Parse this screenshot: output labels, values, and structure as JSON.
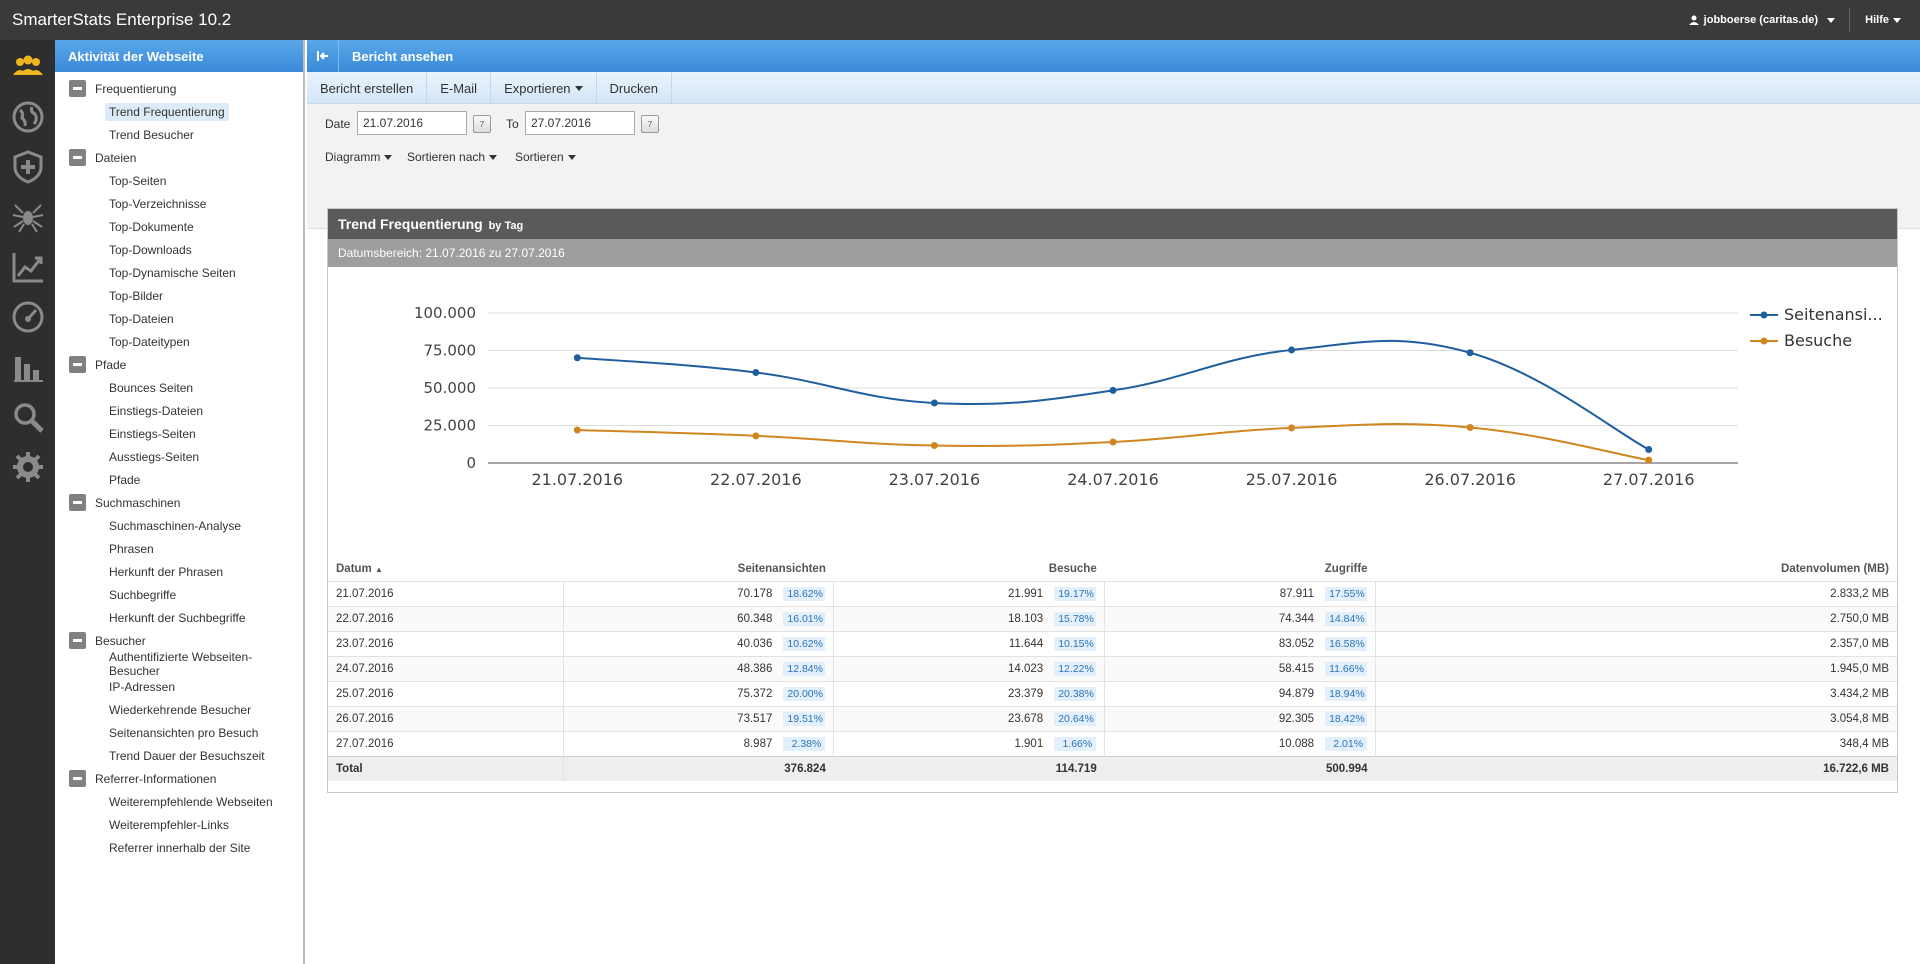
{
  "app": {
    "title": "SmarterStats Enterprise 10.2",
    "user_menu": "jobboerse (caritas.de)",
    "help_menu": "Hilfe"
  },
  "rail_icons": [
    "users-icon",
    "globe-icon",
    "shield-plus-icon",
    "spider-icon",
    "trend-chart-icon",
    "gauge-icon",
    "bar-chart-icon",
    "search-icon",
    "gear-icon"
  ],
  "sidebar": {
    "title": "Aktivität der Webseite",
    "groups": [
      {
        "label": "Frequentierung",
        "items": [
          "Trend Frequentierung",
          "Trend Besucher"
        ]
      },
      {
        "label": "Dateien",
        "items": [
          "Top-Seiten",
          "Top-Verzeichnisse",
          "Top-Dokumente",
          "Top-Downloads",
          "Top-Dynamische Seiten",
          "Top-Bilder",
          "Top-Dateien",
          "Top-Dateitypen"
        ]
      },
      {
        "label": "Pfade",
        "items": [
          "Bounces Seiten",
          "Einstiegs-Dateien",
          "Einstiegs-Seiten",
          "Ausstiegs-Seiten",
          "Pfade"
        ]
      },
      {
        "label": "Suchmaschinen",
        "items": [
          "Suchmaschinen-Analyse",
          "Phrasen",
          "Herkunft der Phrasen",
          "Suchbegriffe",
          "Herkunft der Suchbegriffe"
        ]
      },
      {
        "label": "Besucher",
        "items": [
          "Authentifizierte Webseiten-Besucher",
          "IP-Adressen",
          "Wiederkehrende Besucher",
          "Seitenansichten pro Besuch",
          "Trend Dauer der Besuchszeit"
        ]
      },
      {
        "label": "Referrer-Informationen",
        "items": [
          "Weiterempfehlende Webseiten",
          "Weiterempfehler-Links",
          "Referrer innerhalb der Site"
        ]
      }
    ],
    "selected": "Trend Frequentierung"
  },
  "main": {
    "header": "Bericht ansehen",
    "toolbar": [
      "Bericht erstellen",
      "E-Mail",
      "Exportieren",
      "Drucken"
    ],
    "date_label": "Date",
    "date_from": "21.07.2016",
    "to_label": "To",
    "date_to": "27.07.2016",
    "dropdowns": [
      "Diagramm",
      "Sortieren nach",
      "Sortieren"
    ]
  },
  "report": {
    "title": "Trend Frequentierung",
    "title_suffix": "by Tag",
    "range": "Datumsbereich: 21.07.2016 zu 27.07.2016"
  },
  "chart_data": {
    "type": "line",
    "categories": [
      "21.07.2016",
      "22.07.2016",
      "23.07.2016",
      "24.07.2016",
      "25.07.2016",
      "26.07.2016",
      "27.07.2016"
    ],
    "ylim": [
      0,
      100000
    ],
    "yticks": [
      "0",
      "25.000",
      "50.000",
      "75.000",
      "100.000"
    ],
    "grid": true,
    "legend_position": "right",
    "series": [
      {
        "name": "Seitenansi...",
        "color": "#1f5f9e",
        "values": [
          70178,
          60348,
          40036,
          48386,
          75372,
          73517,
          8987
        ]
      },
      {
        "name": "Besuche",
        "color": "#d0861f",
        "values": [
          21991,
          18103,
          11644,
          14023,
          23379,
          23678,
          1901
        ]
      }
    ]
  },
  "table": {
    "headers": [
      "Datum",
      "Seitenansichten",
      "Besuche",
      "Zugriffe",
      "Datenvolumen (MB)"
    ],
    "rows": [
      [
        "21.07.2016",
        "70.178",
        "18.62%",
        "21.991",
        "19.17%",
        "87.911",
        "17.55%",
        "2.833,2 MB"
      ],
      [
        "22.07.2016",
        "60.348",
        "16.01%",
        "18.103",
        "15.78%",
        "74.344",
        "14.84%",
        "2.750,0 MB"
      ],
      [
        "23.07.2016",
        "40.036",
        "10.62%",
        "11.644",
        "10.15%",
        "83.052",
        "16.58%",
        "2.357,0 MB"
      ],
      [
        "24.07.2016",
        "48.386",
        "12.84%",
        "14.023",
        "12.22%",
        "58.415",
        "11.66%",
        "1.945,0 MB"
      ],
      [
        "25.07.2016",
        "75.372",
        "20.00%",
        "23.379",
        "20.38%",
        "94.879",
        "18.94%",
        "3.434,2 MB"
      ],
      [
        "26.07.2016",
        "73.517",
        "19.51%",
        "23.678",
        "20.64%",
        "92.305",
        "18.42%",
        "3.054,8 MB"
      ],
      [
        "27.07.2016",
        "8.987",
        "2.38%",
        "1.901",
        "1.66%",
        "10.088",
        "2.01%",
        "348,4 MB"
      ]
    ],
    "total": [
      "Total",
      "376.824",
      "114.719",
      "500.994",
      "16.722,6 MB"
    ]
  }
}
